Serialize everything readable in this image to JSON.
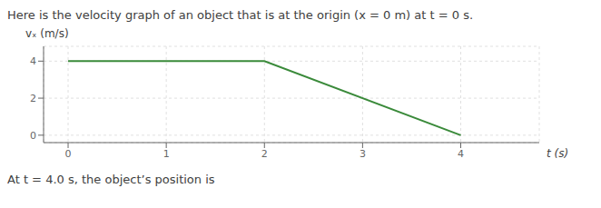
{
  "chart_data": {
    "type": "line",
    "title": "Here is the velocity graph of an object that is at the origin (x = 0 m) at t = 0 s.",
    "subtitle": "At t = 4.0 s, the object’s position is",
    "xlabel": "t (s)",
    "ylabel": "vₓ (m/s)",
    "x": [
      0,
      2,
      4
    ],
    "values": [
      4,
      4,
      0
    ],
    "color": "#3a8a3a",
    "xlim": [
      -0.25,
      4.8
    ],
    "ylim": [
      -0.4,
      4.8
    ],
    "xticks": [
      0,
      1,
      2,
      3,
      4
    ],
    "yticks": [
      0,
      2,
      4
    ],
    "grid": true
  }
}
